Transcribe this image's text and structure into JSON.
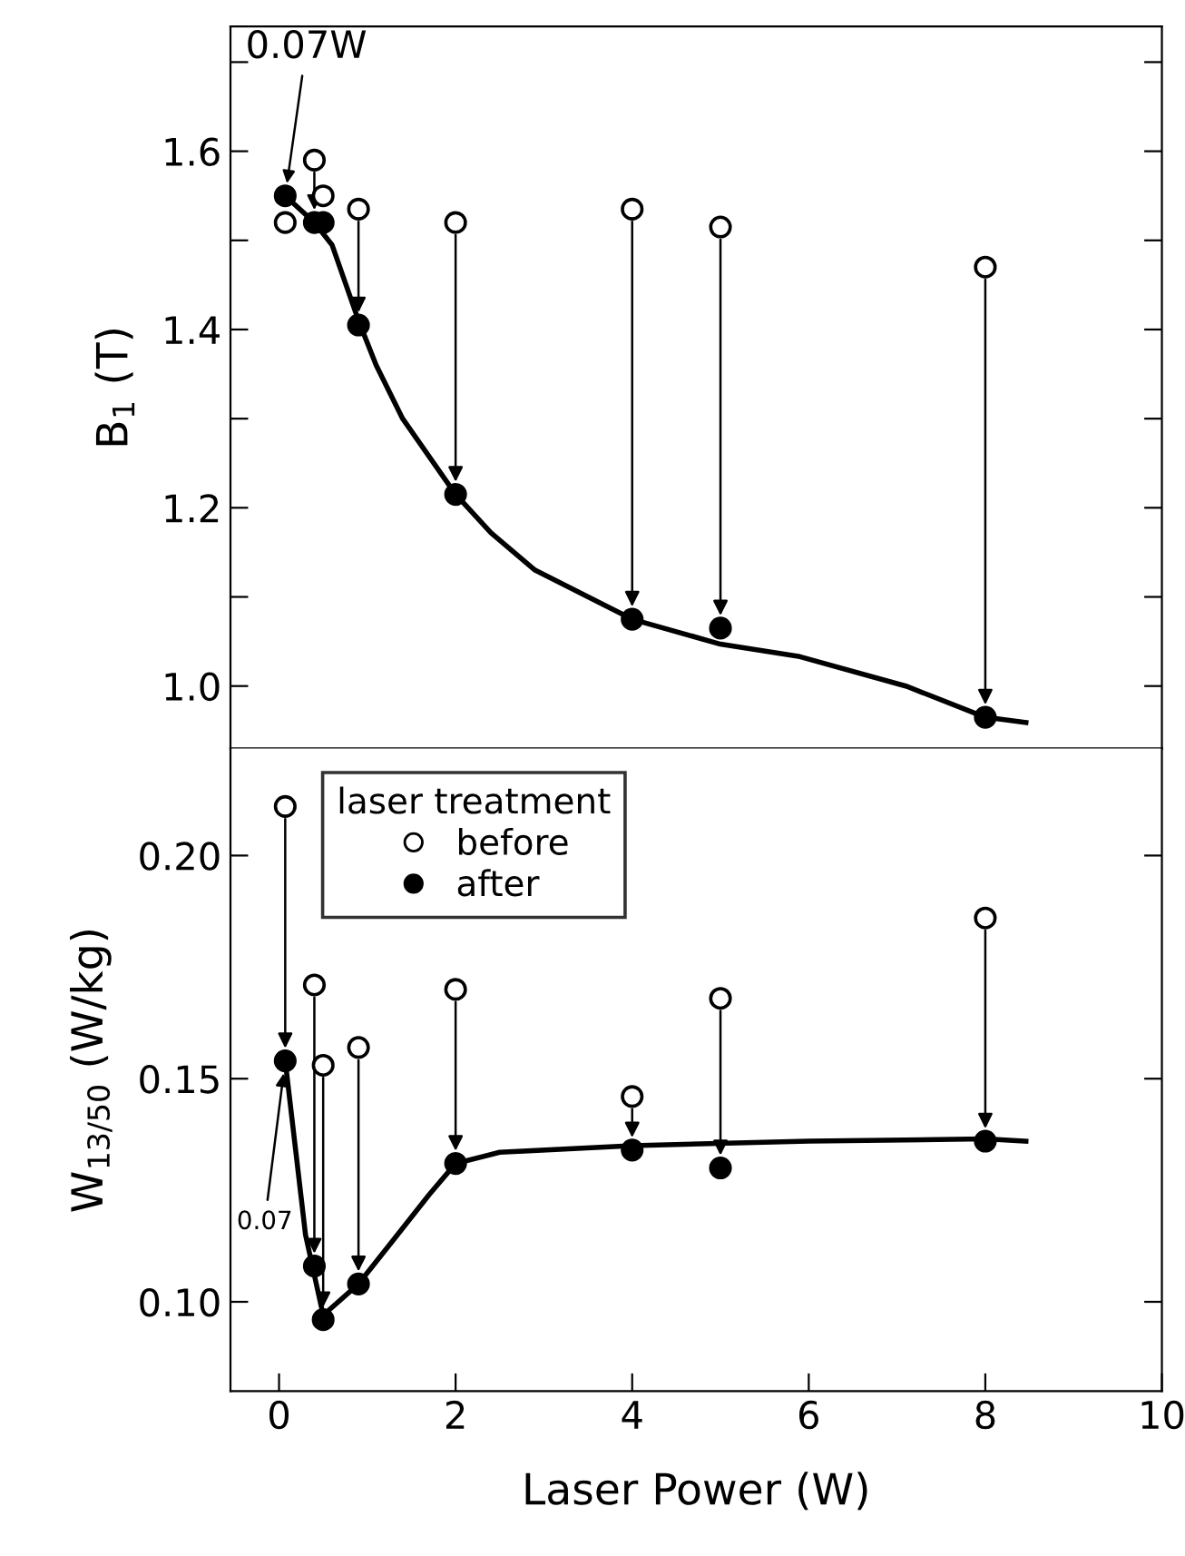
{
  "chart_data": [
    {
      "type": "scatter",
      "ylabel": "B$_{1}$ (T)",
      "xlim": [
        -0.55,
        10.0
      ],
      "ylim": [
        0.93,
        1.74
      ],
      "yticks": [
        {
          "value": 1.0,
          "label": "1.0"
        },
        {
          "value": 1.1,
          "label": null
        },
        1.2,
        {
          "value": 1.3,
          "label": null
        },
        1.4,
        {
          "value": 1.5,
          "label": null
        },
        1.6,
        {
          "value": 1.7,
          "label": null
        }
      ],
      "tick_labels": "y",
      "grid": false,
      "legend": false,
      "series": [
        {
          "color": "#000000",
          "marker": "circle",
          "x": [
            0.07,
            0.4,
            0.5,
            0.9,
            2,
            4,
            5,
            8
          ],
          "values": [
            1.52,
            1.59,
            1.55,
            1.535,
            1.52,
            1.535,
            1.515,
            1.47
          ]
        },
        {
          "color": "#000000",
          "marker": "circle",
          "x": [
            0.07,
            0.4,
            0.5,
            0.9,
            2,
            4,
            5,
            8
          ],
          "values": [
            1.55,
            1.52,
            1.52,
            1.405,
            1.215,
            1.075,
            1.065,
            0.965
          ]
        },
        {
          "type": "line",
          "color": "#000000",
          "line_style": "solid",
          "x": [
            0.07,
            0.4,
            0.6,
            0.9,
            1.1,
            1.4,
            2,
            2.4,
            2.9,
            4,
            5,
            5.9,
            7.1,
            8,
            8.46
          ],
          "values": [
            1.55,
            1.52,
            1.495,
            1.41,
            1.36,
            1.3,
            1.215,
            1.172,
            1.13,
            1.075,
            1.047,
            1.033,
            1.0,
            0.965,
            0.959
          ]
        }
      ],
      "annotations": [
        {
          "text": "0.07W",
          "x": 0.07,
          "y": 1.55
        }
      ]
    },
    {
      "type": "scatter",
      "ylabel": "W$_{13/50}$ (W/kg)",
      "xlabel": "Laser Power (W)",
      "xlim": [
        -0.55,
        10.0
      ],
      "ylim": [
        0.08,
        0.224
      ],
      "xticks": [
        0,
        2,
        4,
        6,
        8,
        10
      ],
      "yticks": [
        {
          "value": 0.1,
          "label": "0.10"
        },
        0.15,
        {
          "value": 0.2,
          "label": "0.20"
        }
      ],
      "grid": false,
      "legend": "top left",
      "legend_title": "laser treatment",
      "series": [
        {
          "name": "before",
          "color": "#000000",
          "marker": "circle",
          "x": [
            0.07,
            0.4,
            0.5,
            0.9,
            2,
            4,
            5,
            8
          ],
          "values": [
            0.211,
            0.171,
            0.153,
            0.157,
            0.17,
            0.146,
            0.168,
            0.186
          ]
        },
        {
          "name": "after",
          "color": "#000000",
          "marker": "circle",
          "x": [
            0.07,
            0.4,
            0.5,
            0.9,
            2,
            4,
            5,
            8
          ],
          "values": [
            0.154,
            0.108,
            0.096,
            0.104,
            0.131,
            0.134,
            0.13,
            0.136
          ]
        },
        {
          "type": "line",
          "color": "#000000",
          "line_style": "solid",
          "x": [
            0.07,
            0.3,
            0.5,
            0.9,
            1.3,
            1.7,
            2,
            2.5,
            4,
            6,
            8,
            8.46
          ],
          "values": [
            0.154,
            0.115,
            0.097,
            0.104,
            0.114,
            0.124,
            0.131,
            0.1335,
            0.135,
            0.136,
            0.1365,
            0.136
          ]
        }
      ],
      "annotations": [
        {
          "text": "0.07",
          "x": 0.07,
          "y": 0.154
        }
      ]
    }
  ]
}
